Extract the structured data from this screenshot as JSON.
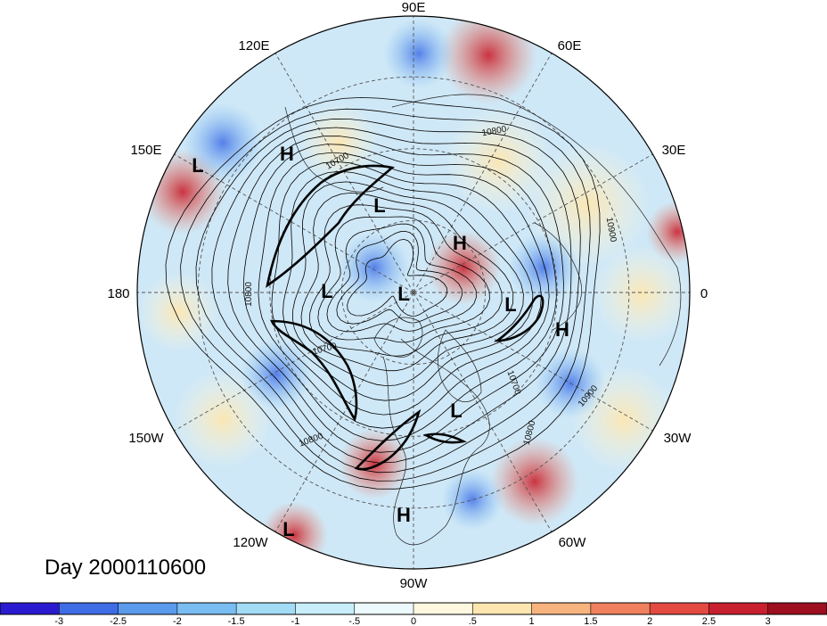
{
  "title": "Day 2000110600",
  "longitude_labels": [
    "90E",
    "60E",
    "30E",
    "0",
    "30W",
    "60W",
    "90W",
    "120W",
    "150W",
    "180",
    "150E",
    "120E"
  ],
  "pressure_centers": [
    "L",
    "H",
    "L",
    "H",
    "L",
    "L",
    "L",
    "H",
    "L",
    "H",
    "L"
  ],
  "contour_labels": [
    "10800",
    "10700",
    "10900",
    "10800",
    "10700",
    "10900",
    "10800",
    "10800",
    "10700"
  ],
  "colorbar": {
    "ticks": [
      "-3",
      "-2.5",
      "-2",
      "-1.5",
      "-1",
      "-.5",
      "0",
      ".5",
      "1",
      "1.5",
      "2",
      "2.5",
      "3"
    ],
    "colors": [
      "#2b1bd0",
      "#3f6de6",
      "#5a9bec",
      "#79bdf2",
      "#a3dcf6",
      "#c9eefb",
      "#ecf9fd",
      "#fdf8df",
      "#fde6b0",
      "#f8b47f",
      "#f0805e",
      "#e34a42",
      "#c8202e",
      "#9e0f1f"
    ],
    "field_base": "#cfe8f7"
  }
}
